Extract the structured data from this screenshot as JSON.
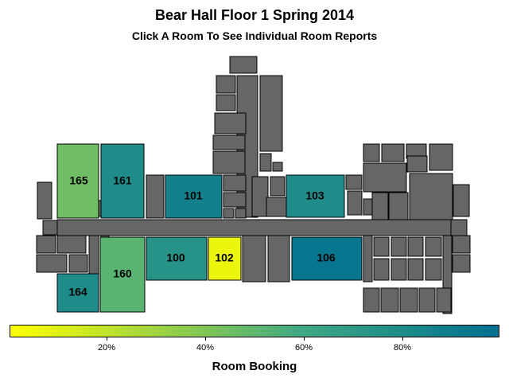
{
  "header": {
    "title": "Bear Hall Floor 1 Spring 2014",
    "subtitle": "Click A Room To See Individual Room Reports"
  },
  "colors": {
    "block": "#666666",
    "scale_low": "#ffff00",
    "scale_mid": "#3fa884",
    "scale_high": "#00708f"
  },
  "rooms": [
    {
      "id": "room-165",
      "label": "165",
      "booking": 0.45
    },
    {
      "id": "room-161",
      "label": "161",
      "booking": 0.8
    },
    {
      "id": "room-101",
      "label": "101",
      "booking": 0.88
    },
    {
      "id": "room-103",
      "label": "103",
      "booking": 0.8
    },
    {
      "id": "room-100",
      "label": "100",
      "booking": 0.75
    },
    {
      "id": "room-102",
      "label": "102",
      "booking": 0.06
    },
    {
      "id": "room-106",
      "label": "106",
      "booking": 0.96
    },
    {
      "id": "room-164",
      "label": "164",
      "booking": 0.8
    },
    {
      "id": "room-160",
      "label": "160",
      "booking": 0.52
    }
  ],
  "legend": {
    "title": "Room Booking",
    "ticks": [
      "20%",
      "40%",
      "60%",
      "80%"
    ]
  }
}
